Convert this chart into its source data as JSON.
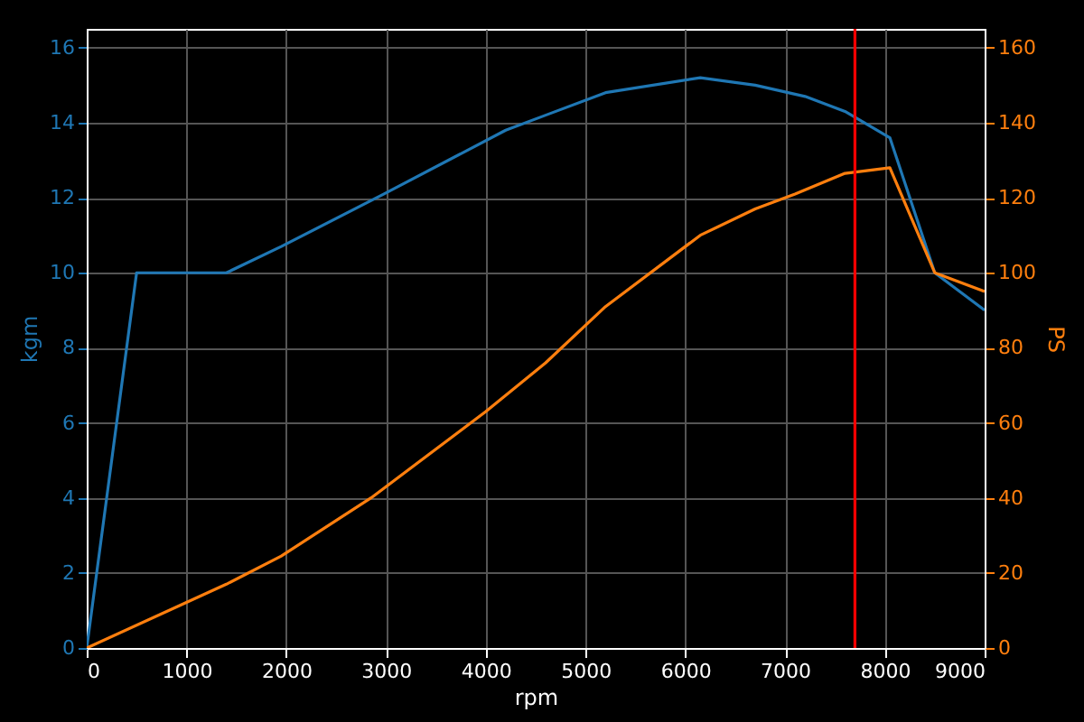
{
  "chart_data": {
    "type": "line",
    "xlabel": "rpm",
    "ylabel": "kgm",
    "y2label": "PS",
    "xlim": [
      0,
      9000
    ],
    "xticks": [
      0,
      1000,
      2000,
      3000,
      4000,
      5000,
      6000,
      7000,
      8000,
      9000
    ],
    "ylim": [
      0,
      16.5
    ],
    "yticks": [
      0,
      2,
      4,
      6,
      8,
      10,
      12,
      14,
      16
    ],
    "y2lim": [
      0,
      165
    ],
    "y2ticks": [
      0,
      20,
      40,
      60,
      80,
      100,
      120,
      140,
      160
    ],
    "grid": true,
    "line_style": "solid",
    "marker": "none",
    "series": [
      {
        "color": "#1f77b4",
        "x": [
          0,
          500,
          1400,
          1950,
          2980,
          4200,
          4600,
          5200,
          6150,
          6700,
          7200,
          7600,
          8050,
          8500,
          9000
        ],
        "values": [
          0,
          10,
          10,
          10.7,
          12.1,
          13.8,
          14.2,
          14.8,
          15.2,
          15.0,
          14.7,
          14.3,
          13.6,
          10,
          9.0
        ]
      },
      {
        "color": "#ff7f0e",
        "axis": "y2",
        "x": [
          0,
          1400,
          1950,
          2850,
          4000,
          4600,
          5200,
          6150,
          6700,
          7100,
          7600,
          8050,
          8500,
          9000
        ],
        "values": [
          0,
          17,
          24.5,
          40,
          63,
          76,
          91,
          110,
          117,
          121,
          126.5,
          128,
          100,
          95
        ]
      }
    ],
    "ref_lines": [
      {
        "axis": "x",
        "value": 7700,
        "color": "#ff0000",
        "line_style": "solid"
      }
    ]
  }
}
